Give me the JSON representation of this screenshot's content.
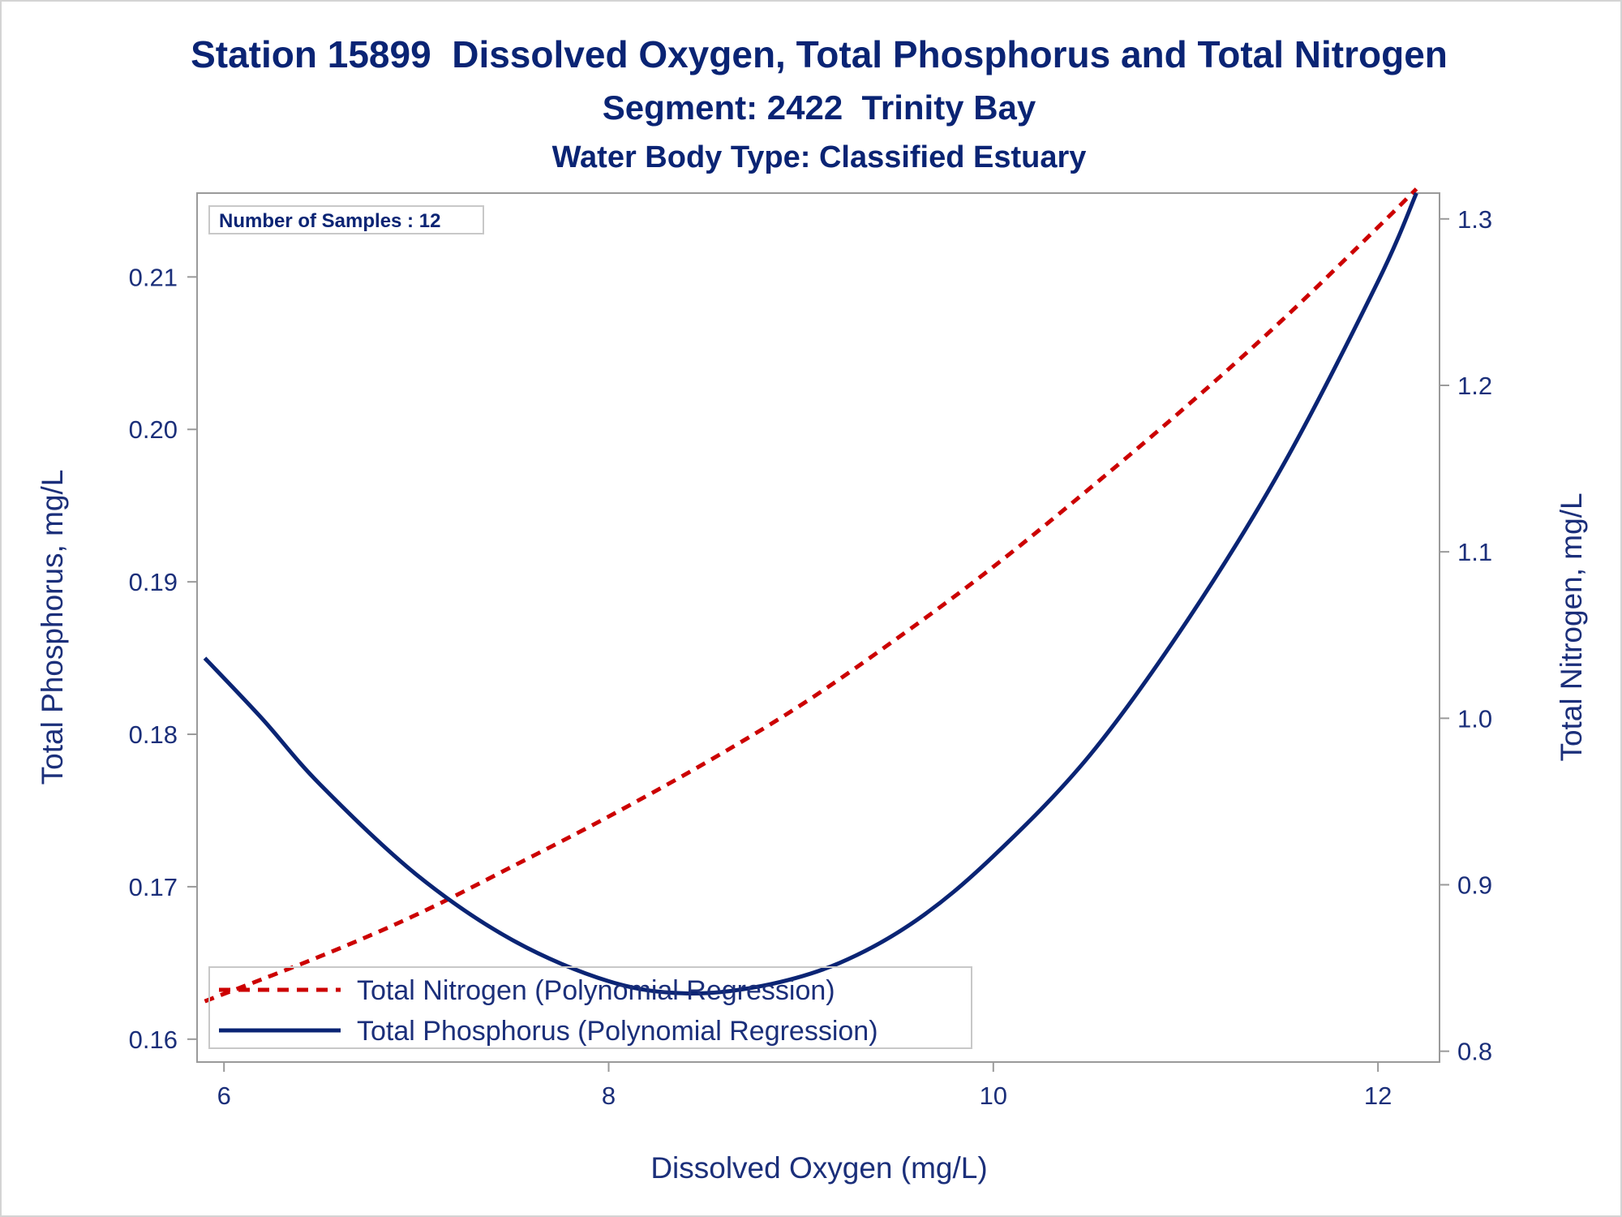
{
  "colors": {
    "title": "#0a2474",
    "axis_text": "#1b2f7a",
    "frame": "#9a9a9a",
    "phosphorus": "#0a2474",
    "nitrogen": "#cc0000"
  },
  "chart_data": {
    "type": "line",
    "title": "Station 15899  Dissolved Oxygen, Total Phosphorus and Total Nitrogen",
    "subtitle": "Segment: 2422  Trinity Bay",
    "subtitle2": "Water Body Type: Classified Estuary",
    "inset_label": "Number of Samples : 12",
    "xlabel": "Dissolved Oxygen (mg/L)",
    "ylabel_left": "Total Phosphorus, mg/L",
    "ylabel_right": "Total Nitrogen, mg/L",
    "xlim": [
      5.86,
      12.32
    ],
    "ylim_left": [
      0.1585,
      0.2155
    ],
    "ylim_right": [
      0.7935,
      1.3155
    ],
    "x_ticks": [
      6,
      8,
      10,
      12
    ],
    "x_tick_labels": [
      "6",
      "8",
      "10",
      "12"
    ],
    "y_left_ticks": [
      0.16,
      0.17,
      0.18,
      0.19,
      0.2,
      0.21
    ],
    "y_left_tick_labels": [
      "0.16",
      "0.17",
      "0.18",
      "0.19",
      "0.20",
      "0.21"
    ],
    "y_right_ticks": [
      0.8,
      0.9,
      1.0,
      1.1,
      1.2,
      1.3
    ],
    "y_right_tick_labels": [
      "0.8",
      "0.9",
      "1.0",
      "1.1",
      "1.2",
      "1.3"
    ],
    "legend_position": "bottom-left",
    "grid": false,
    "series": [
      {
        "name": "Total Nitrogen (Polynomial Regression)",
        "axis": "right",
        "style": "dashed",
        "color": "#cc0000",
        "x": [
          5.9,
          6.5,
          7.0,
          7.5,
          8.0,
          8.5,
          9.0,
          9.5,
          10.0,
          10.5,
          11.0,
          11.5,
          12.0,
          12.2
        ],
        "y": [
          0.83,
          0.857,
          0.882,
          0.911,
          0.941,
          0.973,
          1.008,
          1.048,
          1.091,
          1.138,
          1.187,
          1.239,
          1.295,
          1.318
        ]
      },
      {
        "name": "Total Phosphorus (Polynomial Regression)",
        "axis": "left",
        "style": "solid",
        "color": "#0a2474",
        "x": [
          5.9,
          6.2,
          6.5,
          7.0,
          7.5,
          8.0,
          8.4,
          8.8,
          9.2,
          9.6,
          10.0,
          10.5,
          11.0,
          11.5,
          12.0,
          12.2
        ],
        "y": [
          0.185,
          0.181,
          0.1767,
          0.1708,
          0.1665,
          0.1638,
          0.163,
          0.1635,
          0.165,
          0.1678,
          0.172,
          0.1786,
          0.1873,
          0.1975,
          0.2097,
          0.2155
        ]
      }
    ]
  }
}
